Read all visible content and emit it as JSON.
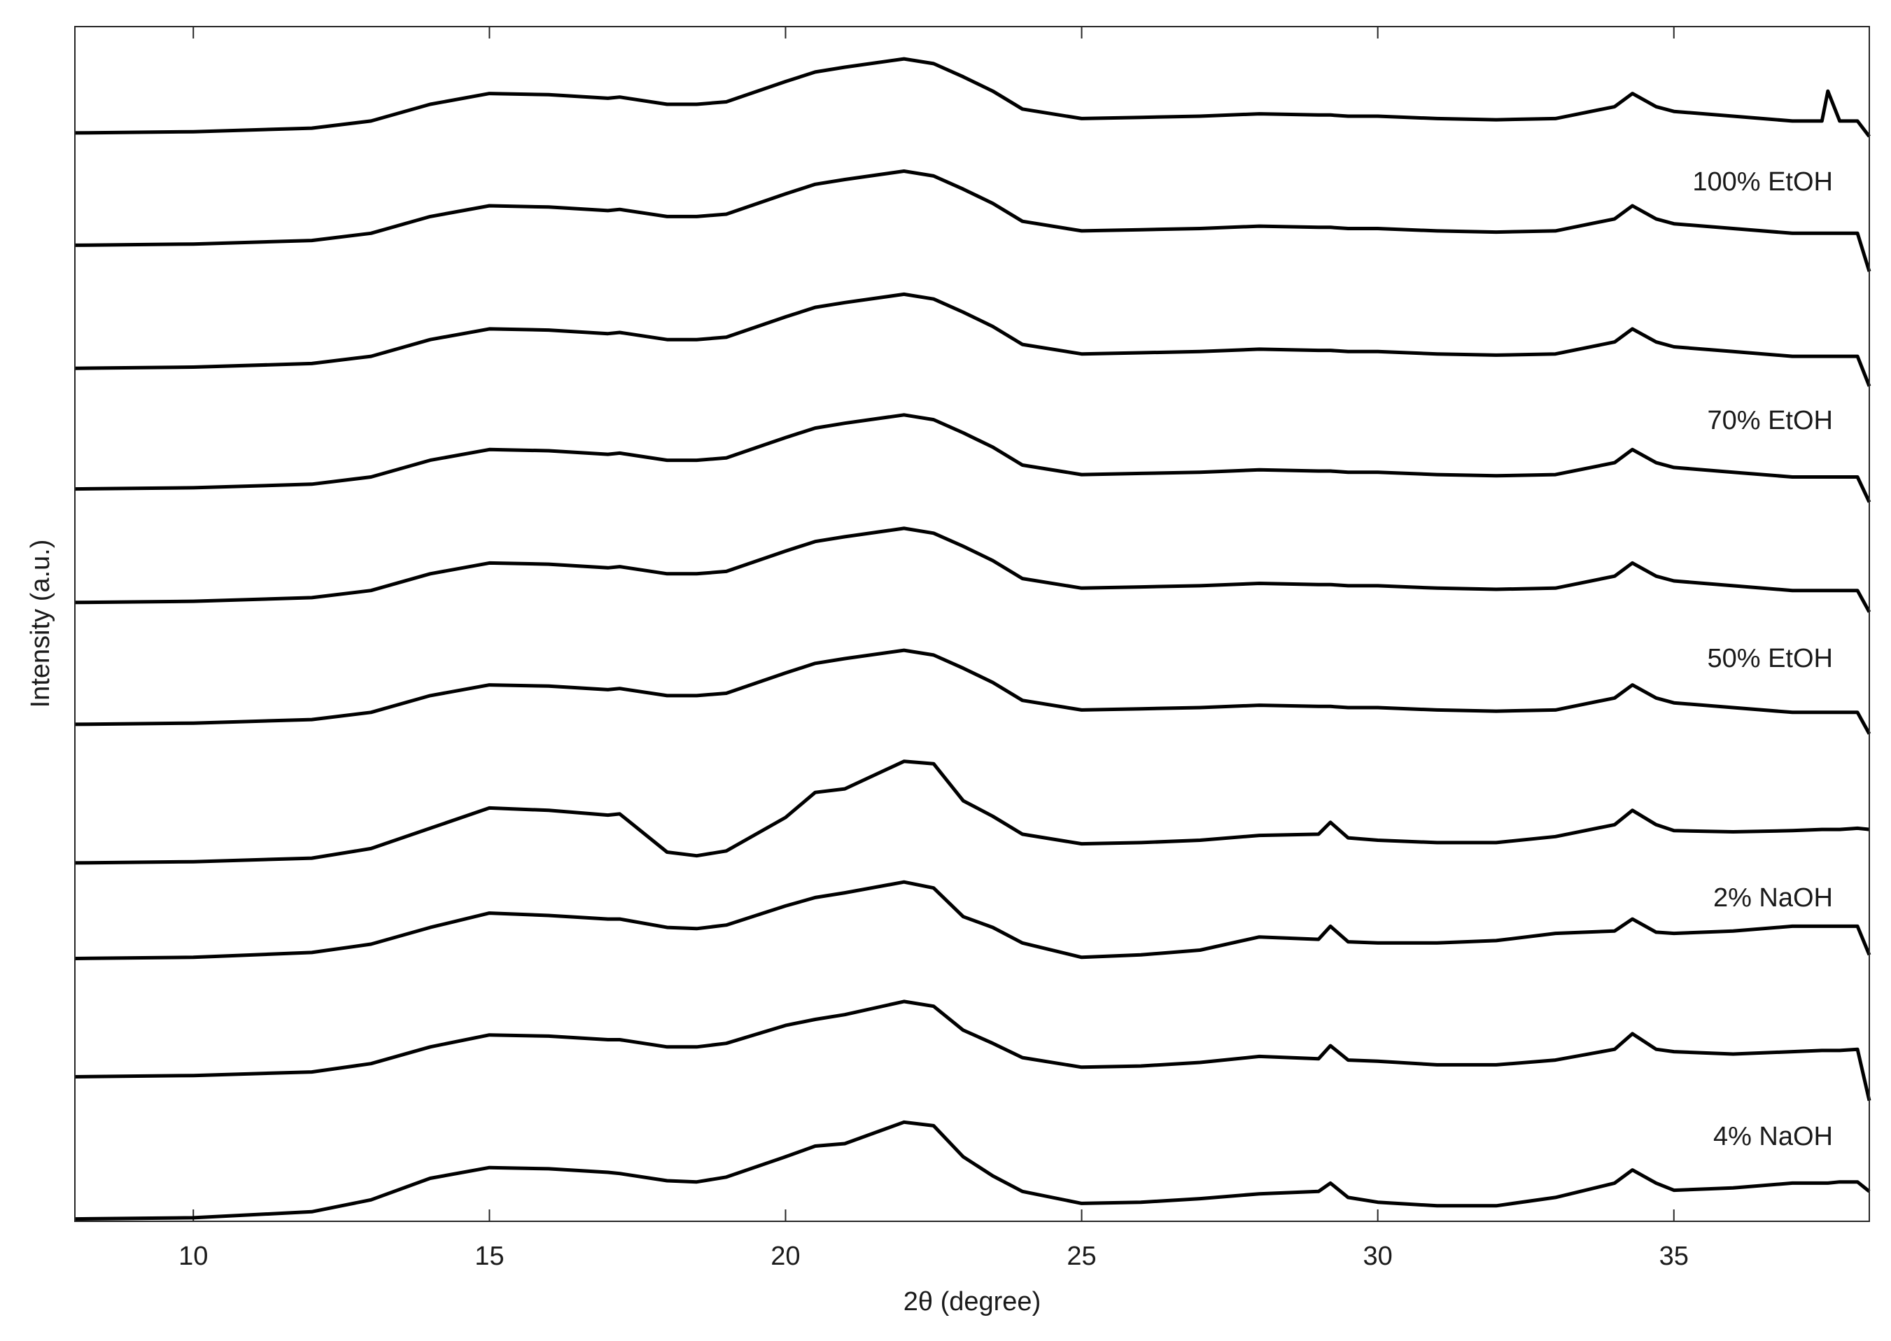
{
  "chart_data": {
    "type": "line",
    "x_label": "2θ (degree)",
    "y_label": "Intensity (a.u.)",
    "annotations": [
      "100% EtOH",
      "70% EtOH",
      "50% EtOH",
      "2% NaOH",
      "4% NaOH"
    ],
    "color": "#000000",
    "xlim": [
      8,
      38.3
    ],
    "xticks": [
      10,
      15,
      20,
      25,
      30,
      35
    ],
    "ylim": [
      0,
      100
    ],
    "x": [
      8,
      10,
      12,
      13,
      14,
      15,
      16,
      17,
      17.2,
      18,
      18.5,
      19,
      20,
      20.5,
      21,
      22,
      22.5,
      23,
      23.5,
      24,
      25,
      26,
      27,
      28,
      29,
      29.2,
      29.5,
      30,
      31,
      32,
      33,
      34,
      34.3,
      34.7,
      35,
      36,
      37,
      37.5,
      37.6,
      37.8,
      38.1,
      38.3
    ],
    "series": [
      {
        "values": [
          91.1,
          91.2,
          91.5,
          92.1,
          93.5,
          94.4,
          94.3,
          94.0,
          94.1,
          93.5,
          93.5,
          93.7,
          95.4,
          96.2,
          96.6,
          97.3,
          96.9,
          95.8,
          94.6,
          93.1,
          92.3,
          92.4,
          92.5,
          92.7,
          92.6,
          92.6,
          92.5,
          92.5,
          92.3,
          92.2,
          92.3,
          93.3,
          94.4,
          93.3,
          92.9,
          92.5,
          92.1,
          92.1,
          94.6,
          92.1,
          92.1,
          90.8
        ]
      },
      {
        "values": [
          81.7,
          81.8,
          82.1,
          82.7,
          84.1,
          85.0,
          84.9,
          84.6,
          84.7,
          84.1,
          84.1,
          84.3,
          86.0,
          86.8,
          87.2,
          87.9,
          87.5,
          86.4,
          85.2,
          83.7,
          82.9,
          83.0,
          83.1,
          83.3,
          83.2,
          83.2,
          83.1,
          83.1,
          82.9,
          82.8,
          82.9,
          83.9,
          85.0,
          83.9,
          83.5,
          83.1,
          82.7,
          82.7,
          82.7,
          82.7,
          82.7,
          79.5
        ]
      },
      {
        "values": [
          71.4,
          71.5,
          71.8,
          72.4,
          73.8,
          74.7,
          74.6,
          74.3,
          74.4,
          73.8,
          73.8,
          74.0,
          75.7,
          76.5,
          76.9,
          77.6,
          77.2,
          76.1,
          74.9,
          73.4,
          72.6,
          72.7,
          72.8,
          73.0,
          72.9,
          72.9,
          72.8,
          72.8,
          72.6,
          72.5,
          72.6,
          73.6,
          74.7,
          73.6,
          73.2,
          72.8,
          72.4,
          72.4,
          72.4,
          72.4,
          72.4,
          69.9
        ]
      },
      {
        "values": [
          61.3,
          61.4,
          61.7,
          62.3,
          63.7,
          64.6,
          64.5,
          64.2,
          64.3,
          63.7,
          63.7,
          63.9,
          65.6,
          66.4,
          66.8,
          67.5,
          67.1,
          66.0,
          64.8,
          63.3,
          62.5,
          62.6,
          62.7,
          62.9,
          62.8,
          62.8,
          62.7,
          62.7,
          62.5,
          62.4,
          62.5,
          63.5,
          64.6,
          63.5,
          63.1,
          62.7,
          62.3,
          62.3,
          62.3,
          62.3,
          62.3,
          60.2
        ]
      },
      {
        "values": [
          51.8,
          51.9,
          52.2,
          52.8,
          54.2,
          55.1,
          55.0,
          54.7,
          54.8,
          54.2,
          54.2,
          54.4,
          56.1,
          56.9,
          57.3,
          58.0,
          57.6,
          56.5,
          55.3,
          53.8,
          53.0,
          53.1,
          53.2,
          53.4,
          53.3,
          53.3,
          53.2,
          53.2,
          53.0,
          52.9,
          53.0,
          54.0,
          55.1,
          54.0,
          53.6,
          53.2,
          52.8,
          52.8,
          52.8,
          52.8,
          52.8,
          51.0
        ]
      },
      {
        "values": [
          41.6,
          41.7,
          42.0,
          42.6,
          44.0,
          44.9,
          44.8,
          44.5,
          44.6,
          44.0,
          44.0,
          44.2,
          45.9,
          46.7,
          47.1,
          47.8,
          47.4,
          46.3,
          45.1,
          43.6,
          42.8,
          42.9,
          43.0,
          43.2,
          43.1,
          43.1,
          43.0,
          43.0,
          42.8,
          42.7,
          42.8,
          43.8,
          44.9,
          43.8,
          43.4,
          43.0,
          42.6,
          42.6,
          42.6,
          42.6,
          42.6,
          40.8
        ]
      },
      {
        "values": [
          30.0,
          30.1,
          30.4,
          31.2,
          32.9,
          34.6,
          34.4,
          34.0,
          34.1,
          30.9,
          30.6,
          31.0,
          33.8,
          35.9,
          36.2,
          38.5,
          38.3,
          35.2,
          33.9,
          32.4,
          31.6,
          31.7,
          31.9,
          32.3,
          32.4,
          33.4,
          32.1,
          31.9,
          31.7,
          31.7,
          32.2,
          33.2,
          34.4,
          33.2,
          32.7,
          32.6,
          32.7,
          32.8,
          32.8,
          32.8,
          32.9,
          32.8
        ]
      },
      {
        "values": [
          22.0,
          22.1,
          22.5,
          23.2,
          24.6,
          25.8,
          25.6,
          25.3,
          25.3,
          24.6,
          24.5,
          24.8,
          26.4,
          27.1,
          27.5,
          28.4,
          27.9,
          25.5,
          24.6,
          23.3,
          22.1,
          22.3,
          22.7,
          23.8,
          23.6,
          24.7,
          23.4,
          23.3,
          23.3,
          23.5,
          24.1,
          24.3,
          25.3,
          24.2,
          24.1,
          24.3,
          24.7,
          24.7,
          24.7,
          24.7,
          24.7,
          22.3
        ]
      },
      {
        "values": [
          12.1,
          12.2,
          12.5,
          13.2,
          14.6,
          15.6,
          15.5,
          15.2,
          15.2,
          14.6,
          14.6,
          14.9,
          16.4,
          16.9,
          17.3,
          18.4,
          18.0,
          16.0,
          14.9,
          13.7,
          12.9,
          13.0,
          13.3,
          13.8,
          13.6,
          14.7,
          13.5,
          13.4,
          13.1,
          13.1,
          13.5,
          14.4,
          15.7,
          14.4,
          14.2,
          14.0,
          14.2,
          14.3,
          14.3,
          14.3,
          14.4,
          10.1
        ]
      },
      {
        "values": [
          0.2,
          0.3,
          0.8,
          1.8,
          3.6,
          4.5,
          4.4,
          4.1,
          4.0,
          3.4,
          3.3,
          3.7,
          5.4,
          6.3,
          6.5,
          8.3,
          8.0,
          5.4,
          3.8,
          2.5,
          1.5,
          1.6,
          1.9,
          2.3,
          2.5,
          3.2,
          2.0,
          1.6,
          1.3,
          1.3,
          2.0,
          3.2,
          4.3,
          3.2,
          2.6,
          2.8,
          3.2,
          3.2,
          3.2,
          3.3,
          3.3,
          2.5
        ]
      }
    ]
  }
}
